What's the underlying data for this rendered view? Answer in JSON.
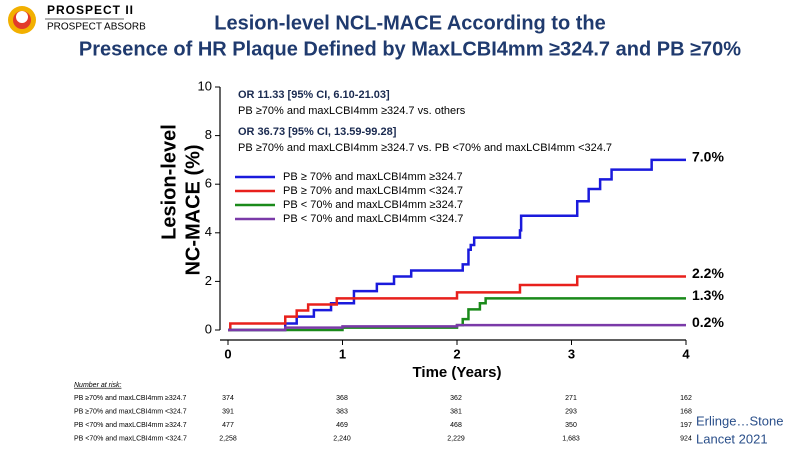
{
  "logo": {
    "title": "PROSPECT II",
    "subtitle": "PROSPECT ABSORB"
  },
  "citation": [
    "Erlinge…Stone",
    "Lancet 2021"
  ],
  "chart_data": {
    "type": "step",
    "title": [
      "Lesion-level NCL-MACE According to the",
      "Presence of HR Plaque Defined by MaxLCBI4mm ≥324.7 and PB ≥70%"
    ],
    "ylabel": [
      "Lesion-level",
      "NC-MACE (%)"
    ],
    "xlabel": "Time (Years)",
    "xlim": [
      0,
      4
    ],
    "xticks": [
      0,
      1,
      2,
      3,
      4
    ],
    "ylim": [
      0,
      10
    ],
    "yticks": [
      0,
      2,
      4,
      6,
      8,
      10
    ],
    "annotations": [
      "OR 11.33 [95% CI, 6.10-21.03]",
      "PB ≥70% and maxLCBI4mm ≥324.7 vs. others",
      "OR 36.73 [95% CI, 13.59-99.28]",
      "PB ≥70% and maxLCBI4mm ≥324.7 vs. PB <70% and maxLCBI4mm <324.7"
    ],
    "series": [
      {
        "name": "PB ≥ 70% and maxLCBI4mm ≥324.7",
        "color": "#1a1adc",
        "end_label": "7.0%",
        "x": [
          0,
          0.5,
          0.6,
          0.75,
          0.9,
          1.1,
          1.3,
          1.45,
          1.6,
          2.05,
          2.1,
          2.12,
          2.15,
          2.55,
          2.56,
          3.05,
          3.15,
          3.25,
          3.35,
          3.7,
          4
        ],
        "values": [
          0,
          0.27,
          0.55,
          0.82,
          1.1,
          1.6,
          1.9,
          2.2,
          2.45,
          2.7,
          3.3,
          3.5,
          3.8,
          4.1,
          4.7,
          5.3,
          5.8,
          6.2,
          6.6,
          7.0,
          7.0
        ]
      },
      {
        "name": "PB ≥ 70% and maxLCBI4mm <324.7",
        "color": "#e8201c",
        "end_label": "2.2%",
        "x": [
          0,
          0.02,
          0.5,
          0.6,
          0.7,
          0.95,
          2.0,
          2.55,
          3.05,
          4
        ],
        "values": [
          0,
          0.27,
          0.55,
          0.8,
          1.05,
          1.3,
          1.55,
          1.85,
          2.2,
          2.2
        ]
      },
      {
        "name": "PB < 70% and maxLCBI4mm ≥324.7",
        "color": "#1a8a1a",
        "end_label": "1.3%",
        "x": [
          0,
          1.0,
          2.0,
          2.05,
          2.1,
          2.2,
          2.25,
          4
        ],
        "values": [
          0,
          0.1,
          0.2,
          0.45,
          0.85,
          1.1,
          1.3,
          1.3
        ]
      },
      {
        "name": "PB < 70% and maxLCBI4mm <324.7",
        "color": "#7a3aa8",
        "end_label": "0.2%",
        "x": [
          0,
          0.5,
          1.0,
          2.0,
          4
        ],
        "values": [
          0,
          0.1,
          0.15,
          0.2,
          0.2
        ]
      }
    ],
    "risk_table": {
      "title": "Number at risk:",
      "rows": [
        {
          "label": "PB ≥70% and maxLCBI4mm ≥324.7",
          "counts": [
            "374",
            "368",
            "362",
            "271",
            "162"
          ]
        },
        {
          "label": "PB ≥70% and maxLCBI4mm <324.7",
          "counts": [
            "391",
            "383",
            "381",
            "293",
            "168"
          ]
        },
        {
          "label": "PB <70% and maxLCBI4mm ≥324.7",
          "counts": [
            "477",
            "469",
            "468",
            "350",
            "197"
          ]
        },
        {
          "label": "PB <70% and maxLCBI4mm <324.7",
          "counts": [
            "2,258",
            "2,240",
            "2,229",
            "1,683",
            "924"
          ]
        }
      ]
    }
  }
}
